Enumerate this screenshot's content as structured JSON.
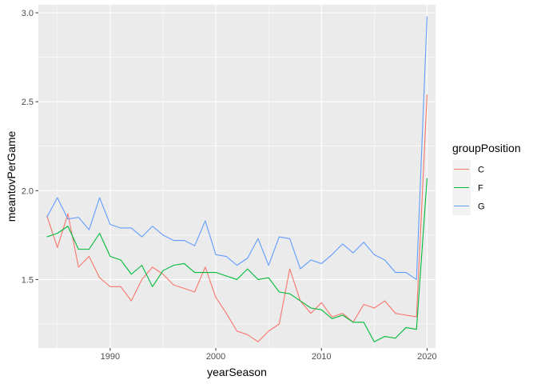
{
  "chart_data": {
    "type": "line",
    "xlabel": "yearSeason",
    "ylabel": "meantovPerGame",
    "xlim": [
      1983.2,
      2020.8
    ],
    "ylim": [
      1.115,
      3.045
    ],
    "x_ticks": [
      1990,
      2000,
      2010,
      2020
    ],
    "y_ticks": [
      1.5,
      2.0,
      2.5,
      3.0
    ],
    "y_tick_labels": [
      "1.5",
      "2.0",
      "2.5",
      "3.0"
    ],
    "grid": true,
    "panel_background": "#EBEBEB",
    "legend": {
      "title": "groupPosition",
      "placement": "right"
    },
    "x": [
      1984,
      1985,
      1986,
      1987,
      1988,
      1989,
      1990,
      1991,
      1992,
      1993,
      1994,
      1995,
      1996,
      1997,
      1998,
      1999,
      2000,
      2001,
      2002,
      2003,
      2004,
      2005,
      2006,
      2007,
      2008,
      2009,
      2010,
      2011,
      2012,
      2013,
      2014,
      2015,
      2016,
      2017,
      2018,
      2019,
      2020
    ],
    "series": [
      {
        "name": "C",
        "color": "#F8766D",
        "values": [
          1.86,
          1.68,
          1.87,
          1.57,
          1.63,
          1.51,
          1.46,
          1.46,
          1.38,
          1.5,
          1.57,
          1.53,
          1.47,
          1.45,
          1.43,
          1.57,
          1.4,
          1.31,
          1.21,
          1.19,
          1.15,
          1.21,
          1.25,
          1.56,
          1.38,
          1.31,
          1.37,
          1.29,
          1.31,
          1.26,
          1.36,
          1.34,
          1.38,
          1.31,
          1.3,
          1.29,
          2.54
        ]
      },
      {
        "name": "F",
        "color": "#00BA38",
        "values": [
          1.74,
          1.76,
          1.8,
          1.67,
          1.67,
          1.76,
          1.63,
          1.61,
          1.53,
          1.58,
          1.46,
          1.55,
          1.58,
          1.59,
          1.54,
          1.54,
          1.54,
          1.52,
          1.5,
          1.56,
          1.5,
          1.51,
          1.43,
          1.42,
          1.38,
          1.34,
          1.33,
          1.28,
          1.3,
          1.26,
          1.26,
          1.15,
          1.18,
          1.17,
          1.23,
          1.22,
          2.07
        ]
      },
      {
        "name": "G",
        "color": "#619CFF",
        "values": [
          1.85,
          1.96,
          1.84,
          1.85,
          1.78,
          1.96,
          1.81,
          1.79,
          1.79,
          1.74,
          1.8,
          1.75,
          1.72,
          1.72,
          1.69,
          1.83,
          1.64,
          1.63,
          1.58,
          1.62,
          1.73,
          1.58,
          1.74,
          1.73,
          1.56,
          1.61,
          1.59,
          1.64,
          1.7,
          1.65,
          1.71,
          1.64,
          1.61,
          1.54,
          1.54,
          1.5,
          2.98
        ]
      }
    ]
  }
}
